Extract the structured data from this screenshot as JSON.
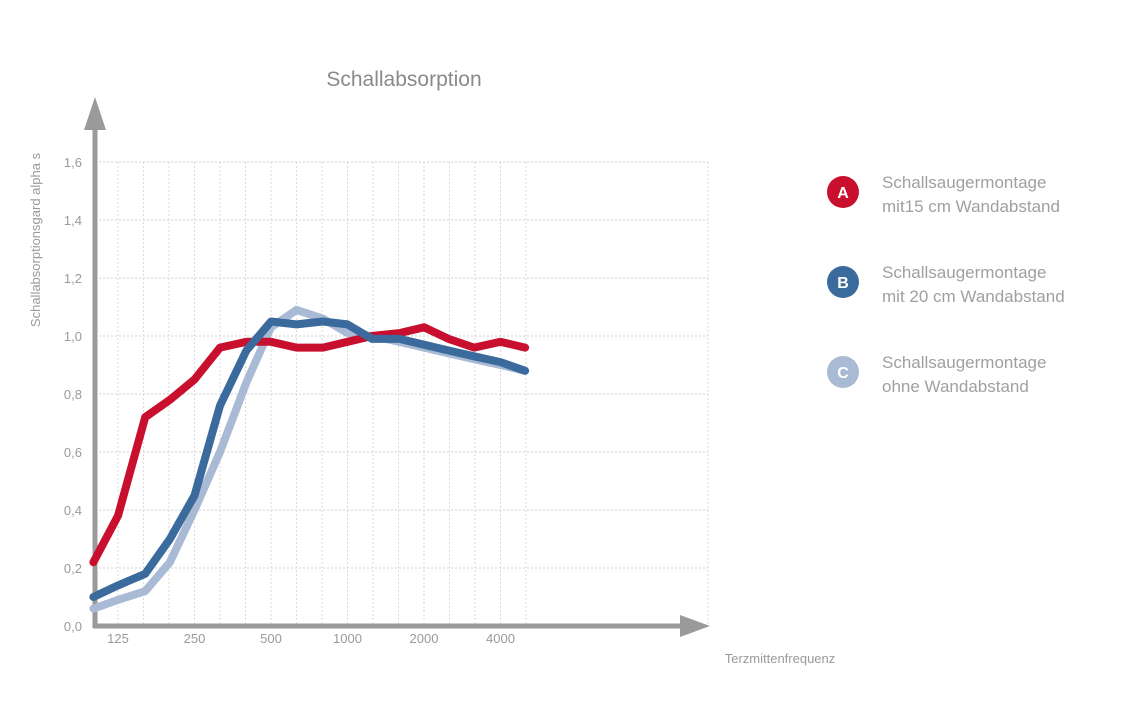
{
  "chart_data": {
    "type": "line",
    "title": "Schallabsorption",
    "xlabel": "Terzmittenfrequenz",
    "ylabel": "Schallabsorptionsgard alpha s",
    "x_ticks": [
      "125",
      "250",
      "500",
      "1000",
      "2000",
      "4000"
    ],
    "y_ticks": [
      "0,0",
      "0,2",
      "0,4",
      "0,6",
      "0,8",
      "1,0",
      "1,2",
      "1,4",
      "1,6"
    ],
    "ylim": [
      0,
      1.6
    ],
    "xlim": [
      100,
      8000
    ],
    "x_scale": "log",
    "grid": true,
    "legend_position": "right",
    "series": [
      {
        "name": "Schallsaugermontage mit 15 cm Wandabstand",
        "legend_lines": [
          "Schallsaugermontage",
          "mit15 cm Wandabstand"
        ],
        "letter": "A",
        "color": "#c8102e",
        "x": [
          100,
          125,
          160,
          200,
          250,
          315,
          400,
          500,
          630,
          800,
          1000,
          1250,
          1600,
          2000,
          2500,
          3150,
          4000,
          5000
        ],
        "y": [
          0.22,
          0.38,
          0.72,
          0.78,
          0.85,
          0.96,
          0.98,
          0.98,
          0.96,
          0.96,
          0.98,
          1.0,
          1.01,
          1.03,
          0.99,
          0.96,
          0.98,
          0.96
        ]
      },
      {
        "name": "Schallsaugermontage mit 20 cm Wandabstand",
        "legend_lines": [
          "Schallsaugermontage",
          "mit 20 cm Wandabstand"
        ],
        "letter": "B",
        "color": "#3b6a9c",
        "x": [
          100,
          125,
          160,
          200,
          250,
          315,
          400,
          500,
          630,
          800,
          1000,
          1250,
          1600,
          2000,
          2500,
          3150,
          4000,
          5000
        ],
        "y": [
          0.1,
          0.14,
          0.18,
          0.3,
          0.45,
          0.76,
          0.95,
          1.05,
          1.04,
          1.05,
          1.04,
          0.99,
          0.99,
          0.97,
          0.95,
          0.93,
          0.91,
          0.88
        ]
      },
      {
        "name": "Schallsaugermontage ohne Wandabstand",
        "legend_lines": [
          "Schallsaugermontage",
          "ohne Wandabstand"
        ],
        "letter": "C",
        "color": "#a9bad4",
        "x": [
          100,
          125,
          160,
          200,
          250,
          315,
          400,
          500,
          630,
          800,
          1000,
          1250,
          1600,
          2000,
          2500,
          3150,
          4000,
          5000
        ],
        "y": [
          0.06,
          0.09,
          0.12,
          0.22,
          0.4,
          0.6,
          0.84,
          1.03,
          1.09,
          1.06,
          1.01,
          1.0,
          0.98,
          0.96,
          0.94,
          0.92,
          0.9,
          0.88
        ]
      }
    ]
  }
}
